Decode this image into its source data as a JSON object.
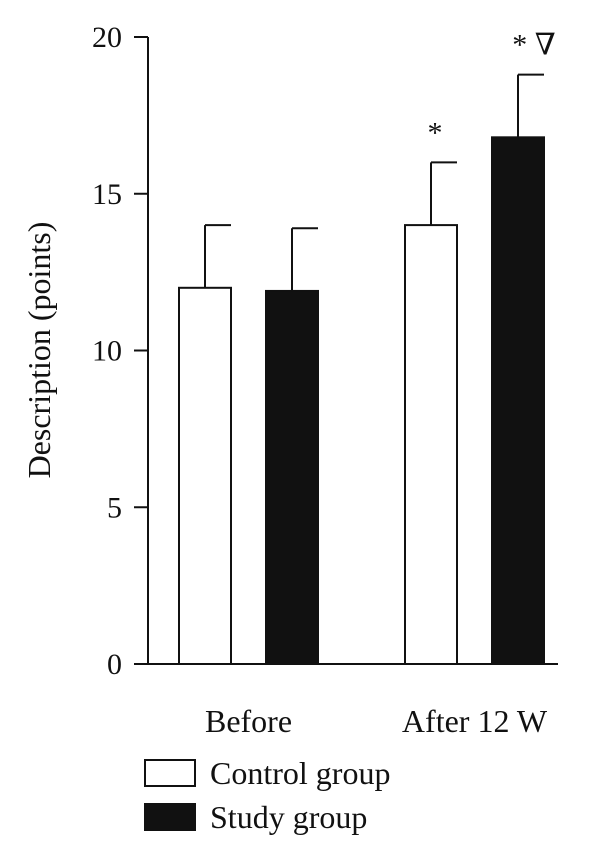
{
  "chart_data": {
    "type": "bar",
    "title": "",
    "xlabel": "",
    "ylabel": "Description (points)",
    "ylim": [
      0,
      20
    ],
    "yticks": [
      0,
      5,
      10,
      15,
      20
    ],
    "categories": [
      "Before",
      "After 12 W"
    ],
    "series": [
      {
        "name": "Control group",
        "values": [
          12.0,
          14.0
        ],
        "errors": [
          2.0,
          2.0
        ],
        "fill": "#ffffff",
        "stroke": "#111111"
      },
      {
        "name": "Study group",
        "values": [
          11.9,
          16.8
        ],
        "errors": [
          2.0,
          2.0
        ],
        "fill": "#111111",
        "stroke": "#111111"
      }
    ],
    "annotations": [
      {
        "category": 1,
        "series": 0,
        "text": "*"
      },
      {
        "category": 1,
        "series": 1,
        "text": "* ∇"
      }
    ],
    "legend_position": "bottom-left",
    "grid": false,
    "axis_color": "#111111"
  }
}
